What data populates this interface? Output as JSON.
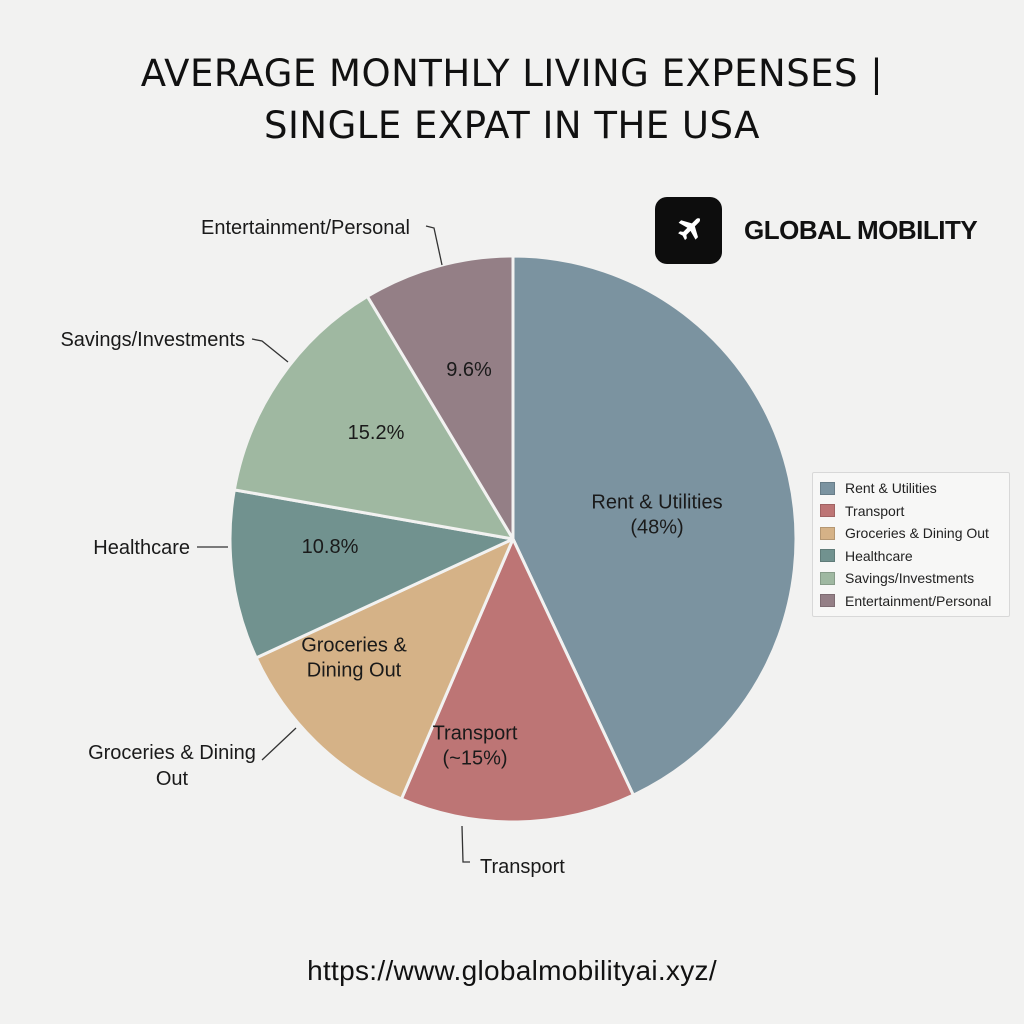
{
  "chart_data": {
    "type": "pie",
    "title_lines": [
      "AVERAGE MONTHLY LIVING EXPENSES |",
      "SINGLE EXPAT IN THE USA"
    ],
    "slices": [
      {
        "name": "Rent & Utilities",
        "value": 48,
        "color": "#7b93a0",
        "inner_label": [
          "Rent & Utilities",
          "(48%)"
        ],
        "outer_label": []
      },
      {
        "name": "Transport",
        "value": 15,
        "color": "#bd7575",
        "inner_label": [
          "Transport",
          "(~15%)"
        ],
        "outer_label": [
          "Transport"
        ]
      },
      {
        "name": "Groceries & Dining Out",
        "value": 13,
        "color": "#d5b287",
        "inner_label": [
          "Groceries &",
          "Dining Out"
        ],
        "outer_label": [
          "Groceries & Dining",
          "Out"
        ]
      },
      {
        "name": "Healthcare",
        "value": 10.8,
        "color": "#71928f",
        "inner_label": [
          "10.8%"
        ],
        "outer_label": [
          "Healthcare"
        ]
      },
      {
        "name": "Savings/Investments",
        "value": 15.2,
        "color": "#9fb8a1",
        "inner_label": [
          "15.2%"
        ],
        "outer_label": [
          "Savings/Investments"
        ]
      },
      {
        "name": "Entertainment/Personal",
        "value": 9.6,
        "color": "#947f86",
        "inner_label": [
          "9.6%"
        ],
        "outer_label": [
          "Entertainment/Personal"
        ]
      }
    ],
    "legend": {
      "placement": "right",
      "items": [
        "Rent & Utilities",
        "Transport",
        "Groceries & Dining Out",
        "Healthcare",
        "Savings/Investments",
        "Entertainment/Personal"
      ]
    }
  },
  "brand": {
    "name": "GLOBAL MOBILITY",
    "icon": "airplane-icon"
  },
  "footer": {
    "url": "https://www.globalmobilityai.xyz/"
  }
}
